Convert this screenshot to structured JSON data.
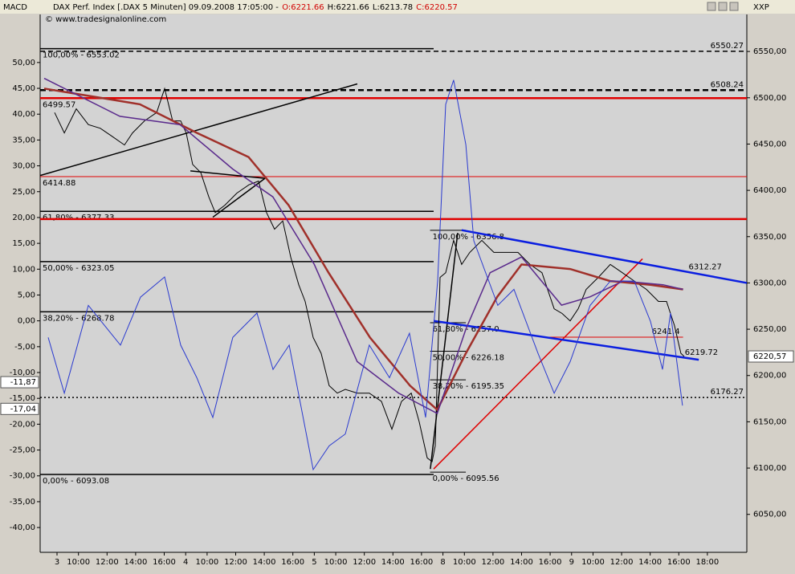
{
  "chart_data": {
    "type": "line",
    "title": "DAX Perf. Index [.DAX  5 Minuten] 09.09.2008 17:05:00 -",
    "ohlc": [
      {
        "label": "O:6221.66",
        "color": "#d00000"
      },
      {
        "label": "H:6221.66",
        "color": "#000000"
      },
      {
        "label": "L:6213.78",
        "color": "#000000"
      },
      {
        "label": "C:6220.57",
        "color": "#d00000"
      }
    ],
    "source": "© www.tradesignalonline.com",
    "y_label": "MACD",
    "y2_label": "XXP",
    "xlim": [
      -1.18,
      48.26
    ],
    "xticks": [
      {
        "value": 0,
        "label": "3"
      },
      {
        "value": 1.5,
        "label": "10:00"
      },
      {
        "value": 3.5,
        "label": "12:00"
      },
      {
        "value": 5.5,
        "label": "14:00"
      },
      {
        "value": 7.5,
        "label": "16:00"
      },
      {
        "value": 9,
        "label": "4"
      },
      {
        "value": 10.5,
        "label": "10:00"
      },
      {
        "value": 12.5,
        "label": "12:00"
      },
      {
        "value": 14.5,
        "label": "14:00"
      },
      {
        "value": 16.5,
        "label": "16:00"
      },
      {
        "value": 18,
        "label": "5"
      },
      {
        "value": 19.5,
        "label": "10:00"
      },
      {
        "value": 21.5,
        "label": "12:00"
      },
      {
        "value": 23.5,
        "label": "14:00"
      },
      {
        "value": 25.5,
        "label": "16:00"
      },
      {
        "value": 27,
        "label": "8"
      },
      {
        "value": 28.5,
        "label": "10:00"
      },
      {
        "value": 30.5,
        "label": "12:00"
      },
      {
        "value": 32.5,
        "label": "14:00"
      },
      {
        "value": 34.5,
        "label": "16:00"
      },
      {
        "value": 36,
        "label": "9"
      },
      {
        "value": 37.5,
        "label": "10:00"
      },
      {
        "value": 39.5,
        "label": "12:00"
      },
      {
        "value": 41.5,
        "label": "14:00"
      },
      {
        "value": 43.5,
        "label": "16:00"
      },
      {
        "value": 45.5,
        "label": "18:00"
      }
    ],
    "ylim": [
      -44.8,
      59.3
    ],
    "yticks": [
      {
        "value": -40,
        "label": "-40,00"
      },
      {
        "value": -35,
        "label": "-35,00"
      },
      {
        "value": -30,
        "label": "-30,00"
      },
      {
        "value": -25,
        "label": "-25,00"
      },
      {
        "value": -20,
        "label": "-20,00"
      },
      {
        "value": -15,
        "label": "-15,00"
      },
      {
        "value": -10,
        "label": "-10,00"
      },
      {
        "value": -5,
        "label": "-5,00"
      },
      {
        "value": 0,
        "label": "0,00"
      },
      {
        "value": 5,
        "label": "5,00"
      },
      {
        "value": 10,
        "label": "10,00"
      },
      {
        "value": 15,
        "label": "15,00"
      },
      {
        "value": 20,
        "label": "20,00"
      },
      {
        "value": 25,
        "label": "25,00"
      },
      {
        "value": 30,
        "label": "30,00"
      },
      {
        "value": 35,
        "label": "35,00"
      },
      {
        "value": 40,
        "label": "40,00"
      },
      {
        "value": 45,
        "label": "45,00"
      },
      {
        "value": 50,
        "label": "50,00"
      }
    ],
    "y2lim": [
      6009,
      6590
    ],
    "y2ticks": [
      {
        "value": 6050,
        "label": "6050,00"
      },
      {
        "value": 6100,
        "label": "6100,00"
      },
      {
        "value": 6150,
        "label": "6150,00"
      },
      {
        "value": 6200,
        "label": "6200,00"
      },
      {
        "value": 6250,
        "label": "6250,00"
      },
      {
        "value": 6300,
        "label": "6300,00"
      },
      {
        "value": 6350,
        "label": "6350,00"
      },
      {
        "value": 6400,
        "label": "6400,00"
      },
      {
        "value": 6450,
        "label": "6450,00"
      },
      {
        "value": 6500,
        "label": "6500,00"
      },
      {
        "value": 6550,
        "label": "6550,00"
      }
    ],
    "series": [
      {
        "color": "#000000",
        "width": 1,
        "axis": "y2",
        "x": [
          -0.17,
          0.51,
          1.35,
          2.19,
          3.03,
          3.88,
          4.72,
          5.28,
          6.12,
          6.97,
          7.53,
          8.09,
          8.65,
          9.04,
          9.49,
          10.06,
          10.62,
          11.07,
          11.74,
          12.58,
          13.43,
          14.1,
          14.66,
          15.22,
          15.79,
          16.35,
          16.91,
          17.36,
          17.92,
          18.48,
          19.04,
          19.61,
          20.17,
          21.01,
          21.85,
          22.7,
          23.43,
          24.1,
          24.78,
          25.34,
          25.9,
          26.24,
          26.46,
          26.8,
          27.19,
          27.75,
          28.31,
          28.88,
          29.72,
          30.56,
          31.4,
          32.25,
          33.09,
          33.93,
          34.78,
          35.34,
          35.9,
          36.46,
          37.02,
          37.87,
          38.71,
          39.55,
          40.39,
          41.24,
          42.08,
          42.64,
          43.2,
          43.65,
          43.88
        ],
        "values": [
          6484,
          6462,
          6488,
          6471,
          6467,
          6458,
          6449,
          6462,
          6475,
          6484,
          6510,
          6475,
          6475,
          6462,
          6428,
          6419,
          6393,
          6376,
          6384,
          6397,
          6406,
          6410,
          6376,
          6358,
          6367,
          6328,
          6298,
          6280,
          6241,
          6224,
          6189,
          6181,
          6185,
          6181,
          6181,
          6172,
          6142,
          6172,
          6181,
          6150,
          6111,
          6107,
          6124,
          6306,
          6311,
          6346,
          6320,
          6333,
          6346,
          6333,
          6333,
          6333,
          6320,
          6311,
          6272,
          6267,
          6259,
          6272,
          6293,
          6306,
          6320,
          6311,
          6302,
          6293,
          6280,
          6280,
          6254,
          6224,
          6220.57
        ]
      },
      {
        "color": "#a0302a",
        "width": 2.5,
        "axis": "y2",
        "x": [
          -0.9,
          5.8,
          9.8,
          13.4,
          16.2,
          19,
          21.9,
          24.7,
          26.6,
          28.6,
          30.8,
          32.5,
          35.9,
          38.7,
          41.5,
          43.8
        ],
        "values": [
          6510,
          6493,
          6462,
          6436,
          6384,
          6311,
          6241,
          6189,
          6163,
          6224,
          6285,
          6320,
          6315,
          6302,
          6298,
          6293
        ]
      },
      {
        "color": "#5a2a8c",
        "width": 1.5,
        "axis": "y2",
        "x": [
          -0.9,
          4.4,
          8.6,
          12.3,
          15.1,
          18,
          21,
          23.9,
          26.6,
          28.6,
          30.3,
          32.5,
          35.3,
          37.3,
          39.6,
          42.4,
          43.8
        ],
        "values": [
          6521,
          6480,
          6471,
          6423,
          6393,
          6320,
          6215,
          6181,
          6159,
          6250,
          6311,
          6328,
          6276,
          6285,
          6302,
          6298,
          6293
        ]
      },
      {
        "color": "#2a3ad0",
        "width": 1,
        "axis": "y",
        "x": [
          -0.62,
          0.51,
          2.19,
          4.44,
          5.84,
          7.53,
          8.65,
          9.78,
          10.9,
          12.3,
          13.99,
          15.11,
          16.24,
          17.92,
          19.04,
          20.17,
          21.85,
          23.26,
          24.66,
          25.79,
          26.63,
          27.19,
          27.75,
          28.6,
          29.16,
          30.84,
          31.97,
          33.65,
          34.78,
          35.9,
          37.3,
          38.71,
          40.39,
          41.52,
          42.36,
          42.92,
          43.76
        ],
        "values": [
          -3.2,
          -14,
          3,
          -4.7,
          4.6,
          8.5,
          -4.7,
          -11,
          -18.7,
          -3.2,
          1.5,
          -9.4,
          -4.7,
          -28.8,
          -24.2,
          -21.9,
          -4.7,
          -11,
          -2.4,
          -18.7,
          7.7,
          41.9,
          46.6,
          34.1,
          15.5,
          3,
          6.1,
          -6.3,
          -14,
          -7.9,
          3,
          7.7,
          7.7,
          -0.1,
          -9.4,
          1.5,
          -16.4
        ]
      }
    ],
    "levels": [
      {
        "value": 6553.02,
        "label": "100,00% - 6553.02",
        "color": "#000000",
        "style": "solid",
        "x": [
          -1.18,
          26.35
        ],
        "side": "left"
      },
      {
        "value": 6377.33,
        "label": "61,80% - 6377.33",
        "color": "#000000",
        "style": "solid",
        "x": [
          -1.18,
          26.35
        ],
        "side": "left"
      },
      {
        "value": 6323.05,
        "label": "50,00% - 6323.05",
        "color": "#000000",
        "style": "solid",
        "x": [
          -1.18,
          26.35
        ],
        "side": "left"
      },
      {
        "value": 6268.78,
        "label": "38,20% - 6268.78",
        "color": "#000000",
        "style": "solid",
        "x": [
          -1.18,
          26.35
        ],
        "side": "left"
      },
      {
        "value": 6093.08,
        "label": "0,00% - 6093.08",
        "color": "#000000",
        "style": "solid",
        "x": [
          -1.18,
          26.35
        ],
        "side": "left"
      },
      {
        "value": 6356.8,
        "label": "100,00% - 6356.8",
        "color": "#000000",
        "style": "thin",
        "x": [
          26.1,
          28.6
        ],
        "side": "left"
      },
      {
        "value": 6257.0,
        "label": "61,80% - 6257.0",
        "color": "#000000",
        "style": "thin",
        "x": [
          26.1,
          28.6
        ],
        "side": "left"
      },
      {
        "value": 6226.18,
        "label": "50,00% - 6226.18",
        "color": "#000000",
        "style": "thin",
        "x": [
          26.1,
          28.6
        ],
        "side": "left"
      },
      {
        "value": 6195.35,
        "label": "38,20% - 6195.35",
        "color": "#000000",
        "style": "thin",
        "x": [
          26.1,
          28.6
        ],
        "side": "left"
      },
      {
        "value": 6095.56,
        "label": "0,00% - 6095.56",
        "color": "#000000",
        "style": "thin",
        "x": [
          26.1,
          28.6
        ],
        "side": "left"
      },
      {
        "value": 6550.27,
        "label": "6550.27",
        "color": "#000000",
        "style": "dashed",
        "x": [
          -1.18,
          48.26
        ],
        "side": "right"
      },
      {
        "value": 6508.24,
        "label": "6508.24",
        "color": "#000000",
        "style": "dashed-thick",
        "x": [
          -1.18,
          48.26
        ],
        "side": "right"
      },
      {
        "value": 6176.27,
        "label": "6176.27",
        "color": "#000000",
        "style": "dotted",
        "x": [
          -1.18,
          48.26
        ],
        "side": "right"
      },
      {
        "value": 6499.57,
        "label": "6499.57",
        "color": "#e00000",
        "style": "thick",
        "x": [
          -1.18,
          48.26
        ],
        "side": "left"
      },
      {
        "value": 6414.88,
        "label": "6414.88",
        "color": "#e00000",
        "style": "thin",
        "x": [
          -1.18,
          48.26
        ],
        "side": "left"
      },
      {
        "value": 6369,
        "color": "#e00000",
        "style": "thick",
        "x": [
          -1.18,
          48.26
        ]
      },
      {
        "value": 6241.4,
        "label": "6241.4",
        "color": "#e00000",
        "style": "thin",
        "x": [
          34.4,
          43.8
        ],
        "side": "right"
      }
    ],
    "trendlines": [
      {
        "x": [
          -1.18,
          21.01
        ],
        "y": [
          6416,
          6515
        ],
        "color": "#000000"
      },
      {
        "x": [
          9.33,
          14.55
        ],
        "y": [
          6421,
          6413
        ],
        "color": "#000000"
      },
      {
        "x": [
          10.9,
          14.55
        ],
        "y": [
          6371,
          6413
        ],
        "color": "#000000"
      },
      {
        "x": [
          26.12,
          28.03
        ],
        "y": [
          6099,
          6354
        ],
        "color": "#000000"
      },
      {
        "x": [
          26.35,
          40.96
        ],
        "y": [
          6099,
          6326
        ],
        "color": "#e00000"
      },
      {
        "x": [
          28.31,
          48.26
        ],
        "y": [
          6357,
          6300
        ],
        "color": "#0a1ee0",
        "label": {
          "value": 6312.27,
          "label": "6312.27"
        }
      },
      {
        "x": [
          26.35,
          44.9
        ],
        "y": [
          6259,
          6217
        ],
        "color": "#0a1ee0",
        "label": {
          "value": 6219.72,
          "label": "6219.72"
        }
      }
    ],
    "y_markers": [
      {
        "value": -11.87,
        "label": "-11,87"
      },
      {
        "value": -17.04,
        "label": "-17,04"
      }
    ],
    "y2_marker": {
      "value": 6220.57,
      "label": "6220,57"
    }
  }
}
